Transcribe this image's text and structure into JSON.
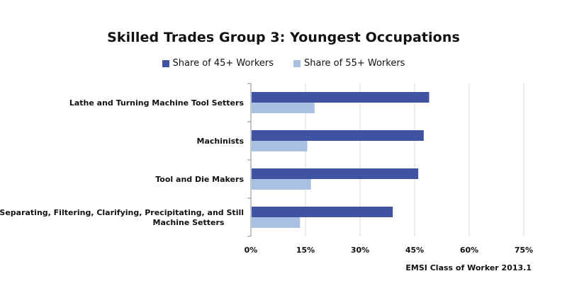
{
  "chart_data": {
    "type": "bar",
    "orientation": "horizontal",
    "title": "Skilled Trades Group 3: Youngest Occupations",
    "categories": [
      "Lathe and Turning Machine Tool Setters",
      "Machinists",
      "Tool and Die Makers",
      "Separating, Filtering, Clarifying, Precipitating, and Still Machine Setters"
    ],
    "category_label_lines": [
      [
        "Lathe and Turning Machine Tool Setters"
      ],
      [
        "Machinists"
      ],
      [
        "Tool and Die Makers"
      ],
      [
        "Separating, Filtering, Clarifying, Precipitating, and Still",
        "Machine Setters"
      ]
    ],
    "series": [
      {
        "name": "Share of 45+ Workers",
        "color": "#3f53a0",
        "values": [
          0.49,
          0.475,
          0.46,
          0.39
        ]
      },
      {
        "name": "Share of 55+ Workers",
        "color": "#a9c0e2",
        "values": [
          0.175,
          0.155,
          0.165,
          0.135
        ]
      }
    ],
    "xlim": [
      0,
      0.75
    ],
    "xticks": [
      0,
      0.15,
      0.3,
      0.45,
      0.6,
      0.75
    ],
    "xtick_labels": [
      "0%",
      "15%",
      "30%",
      "45%",
      "60%",
      "75%"
    ],
    "grid": true,
    "legend_position": "top",
    "source_note": "EMSI Class of Worker 2013.1"
  }
}
